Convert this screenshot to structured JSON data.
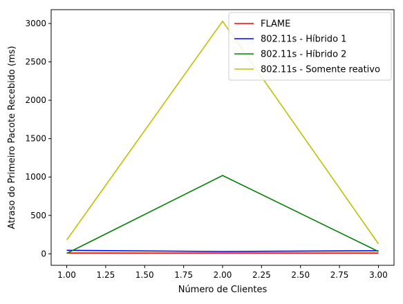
{
  "chart_data": {
    "type": "line",
    "title": "",
    "xlabel": "Número de Clientes",
    "ylabel": "Atraso do Primeiro Pacote Recebido (ms)",
    "xlim": [
      0.9,
      3.1
    ],
    "ylim": [
      -150,
      3180
    ],
    "xticks": [
      1.0,
      1.25,
      1.5,
      1.75,
      2.0,
      2.25,
      2.5,
      2.75,
      3.0
    ],
    "xtick_labels": [
      "1.00",
      "1.25",
      "1.50",
      "1.75",
      "2.00",
      "2.25",
      "2.50",
      "2.75",
      "3.00"
    ],
    "yticks": [
      0,
      500,
      1000,
      1500,
      2000,
      2500,
      3000
    ],
    "ytick_labels": [
      "0",
      "500",
      "1000",
      "1500",
      "2000",
      "2500",
      "3000"
    ],
    "grid": false,
    "legend_position": "top-right",
    "x": [
      1,
      2,
      3
    ],
    "series": [
      {
        "name": "FLAME",
        "color": "#ff0000",
        "values": [
          10,
          10,
          10
        ]
      },
      {
        "name": "802.11s - Híbrido 1",
        "color": "#0000ff",
        "values": [
          45,
          30,
          40
        ]
      },
      {
        "name": "802.11s - Híbrido 2",
        "color": "#008000",
        "values": [
          5,
          1020,
          30
        ]
      },
      {
        "name": "802.11s - Somente reativo",
        "color": "#bfbf00",
        "values": [
          180,
          3030,
          130
        ]
      }
    ]
  }
}
